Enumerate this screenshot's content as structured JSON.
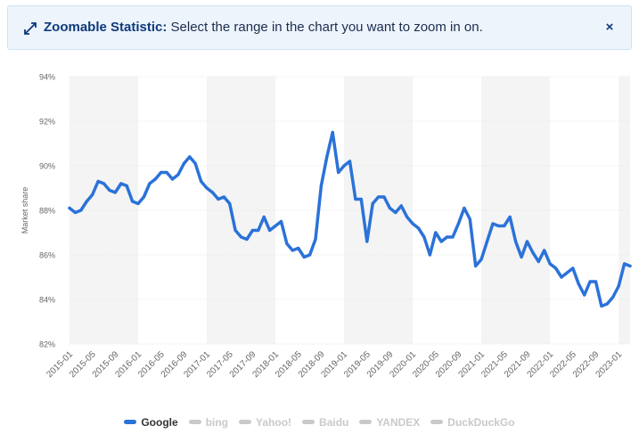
{
  "banner": {
    "title": "Zoomable Statistic:",
    "text": "Select the range in the chart you want to zoom in on.",
    "close_label": "×"
  },
  "colors": {
    "series": "#2b72d9",
    "inactive": "#c9c9c9",
    "band": "#f4f4f4",
    "banner_bg": "#eef4fc"
  },
  "chart_data": {
    "type": "line",
    "ylabel": "Market share",
    "ylim": [
      82,
      94
    ],
    "yticks": [
      82,
      84,
      86,
      88,
      90,
      92,
      94
    ],
    "ytick_suffix": "%",
    "xtick_labels": [
      "2015-01",
      "2015-05",
      "2015-09",
      "2016-01",
      "2016-05",
      "2016-09",
      "2017-01",
      "2017-05",
      "2017-09",
      "2018-01",
      "2018-05",
      "2018-09",
      "2019-01",
      "2019-05",
      "2019-09",
      "2020-01",
      "2020-05",
      "2020-09",
      "2021-01",
      "2021-05",
      "2021-09",
      "2022-01",
      "2022-05",
      "2022-09",
      "2023-01"
    ],
    "start_month": "2015-01",
    "series": [
      {
        "name": "Google",
        "values": [
          88.1,
          87.9,
          88.0,
          88.4,
          88.7,
          89.3,
          89.2,
          88.9,
          88.8,
          89.2,
          89.1,
          88.4,
          88.3,
          88.6,
          89.2,
          89.4,
          89.7,
          89.7,
          89.4,
          89.6,
          90.1,
          90.4,
          90.1,
          89.3,
          89.0,
          88.8,
          88.5,
          88.6,
          88.3,
          87.1,
          86.8,
          86.7,
          87.1,
          87.1,
          87.7,
          87.1,
          87.3,
          87.5,
          86.5,
          86.2,
          86.3,
          85.9,
          86.0,
          86.7,
          89.1,
          90.4,
          91.5,
          89.7,
          90.0,
          90.2,
          88.5,
          88.5,
          86.6,
          88.3,
          88.6,
          88.6,
          88.1,
          87.9,
          88.2,
          87.7,
          87.4,
          87.2,
          86.8,
          86.0,
          87.0,
          86.6,
          86.8,
          86.8,
          87.4,
          88.1,
          87.6,
          85.5,
          85.8,
          86.6,
          87.4,
          87.3,
          87.3,
          87.7,
          86.6,
          85.9,
          86.6,
          86.1,
          85.7,
          86.2,
          85.6,
          85.4,
          85.0,
          85.2,
          85.4,
          84.7,
          84.2,
          84.8,
          84.8,
          83.7,
          83.8,
          84.1,
          84.6,
          85.6,
          85.5
        ],
        "color": "#2b72d9"
      }
    ],
    "legend": [
      {
        "name": "Google",
        "active": true
      },
      {
        "name": "bing",
        "active": false
      },
      {
        "name": "Yahoo!",
        "active": false
      },
      {
        "name": "Baidu",
        "active": false
      },
      {
        "name": "YANDEX",
        "active": false
      },
      {
        "name": "DuckDuckGo",
        "active": false
      }
    ],
    "grid": true,
    "legend_position": "bottom-center"
  }
}
